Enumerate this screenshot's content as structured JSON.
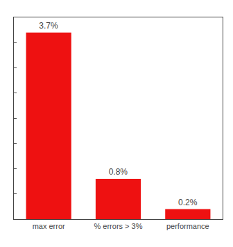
{
  "chart_data": {
    "type": "bar",
    "categories": [
      "max error",
      "% errors > 3%",
      "performance"
    ],
    "values": [
      3.7,
      0.8,
      0.2
    ],
    "value_labels": [
      "3.7%",
      "0.8%",
      "0.2%"
    ],
    "color": "#ee1111",
    "ylim": [
      0,
      4.0
    ],
    "yticks": [
      0,
      0.5,
      1.0,
      1.5,
      2.0,
      2.5,
      3.0,
      3.5,
      4.0
    ],
    "grid": false,
    "tick_labels": "x"
  }
}
